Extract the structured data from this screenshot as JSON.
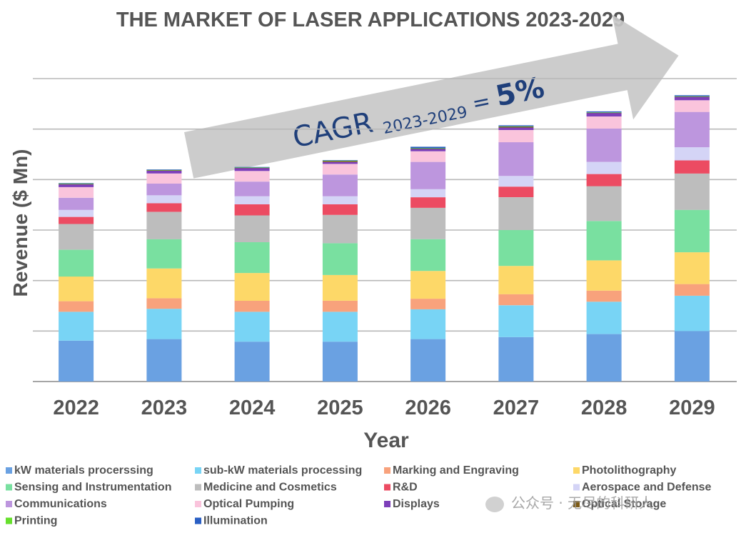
{
  "chart_data": {
    "type": "bar",
    "stacked": true,
    "title": "THE MARKET OF LASER APPLICATIONS 2023-2029",
    "xlabel": "Year",
    "ylabel": "Revenue ($ Mn)",
    "ylim": [
      0,
      60
    ],
    "grid": true,
    "legend_position": "bottom",
    "annotation": {
      "main": "CAGR ",
      "sub": "2023-2029",
      "eq": " = ",
      "value": "5%"
    },
    "categories": [
      "2022",
      "2023",
      "2024",
      "2025",
      "2026",
      "2027",
      "2028",
      "2029"
    ],
    "series": [
      {
        "name": "kW materials procerssing",
        "color": "#6aa1e2",
        "values": [
          8.1,
          8.4,
          7.9,
          7.9,
          8.4,
          8.8,
          9.4,
          10.0
        ]
      },
      {
        "name": "sub-kW materials processing",
        "color": "#78d4f5",
        "values": [
          5.7,
          6.0,
          5.9,
          5.9,
          5.9,
          6.3,
          6.4,
          7.0
        ]
      },
      {
        "name": "Marking and Engraving",
        "color": "#f8a27c",
        "values": [
          2.1,
          2.1,
          2.2,
          2.2,
          2.1,
          2.2,
          2.2,
          2.3
        ]
      },
      {
        "name": "Photolithography",
        "color": "#fdd868",
        "values": [
          4.9,
          5.9,
          5.5,
          5.1,
          5.5,
          5.6,
          6.0,
          6.3
        ]
      },
      {
        "name": "Sensing and Instrumentation",
        "color": "#79e0a0",
        "values": [
          5.3,
          5.8,
          6.1,
          6.3,
          6.3,
          7.1,
          7.8,
          8.4
        ]
      },
      {
        "name": "Medicine and Cosmetics",
        "color": "#bdbdbd",
        "values": [
          5.1,
          5.4,
          5.3,
          5.6,
          6.2,
          6.5,
          6.9,
          7.2
        ]
      },
      {
        "name": "R&D",
        "color": "#ec4b62",
        "values": [
          1.4,
          1.7,
          2.2,
          2.1,
          2.1,
          2.1,
          2.4,
          2.6
        ]
      },
      {
        "name": "Aerospace and Defense",
        "color": "#d4d4f6",
        "values": [
          1.4,
          1.6,
          1.6,
          1.6,
          1.6,
          2.1,
          2.4,
          2.6
        ]
      },
      {
        "name": "Communications",
        "color": "#bd96de",
        "values": [
          2.4,
          2.3,
          2.9,
          4.3,
          5.4,
          6.7,
          6.6,
          7.0
        ]
      },
      {
        "name": "Optical Pumping",
        "color": "#fac4dc",
        "values": [
          2.1,
          2.0,
          2.1,
          2.1,
          2.1,
          2.4,
          2.4,
          2.3
        ]
      },
      {
        "name": "Displays",
        "color": "#7d3fb9",
        "values": [
          0.6,
          0.6,
          0.6,
          0.4,
          0.5,
          0.5,
          0.7,
          0.7
        ]
      },
      {
        "name": "Optical Storage",
        "color": "#7d5a14",
        "values": [
          0.05,
          0.05,
          0.05,
          0.2,
          0.05,
          0.2,
          0.05,
          0.05
        ]
      },
      {
        "name": "Printing",
        "color": "#66e02c",
        "values": [
          0.05,
          0.05,
          0.05,
          0.05,
          0.05,
          0.05,
          0.05,
          0.05
        ]
      },
      {
        "name": "Illumination",
        "color": "#2a5fc4",
        "values": [
          0.1,
          0.1,
          0.1,
          0.1,
          0.3,
          0.2,
          0.2,
          0.2
        ]
      }
    ]
  },
  "watermark": {
    "text": "公众号 · 无尽的科研人"
  }
}
